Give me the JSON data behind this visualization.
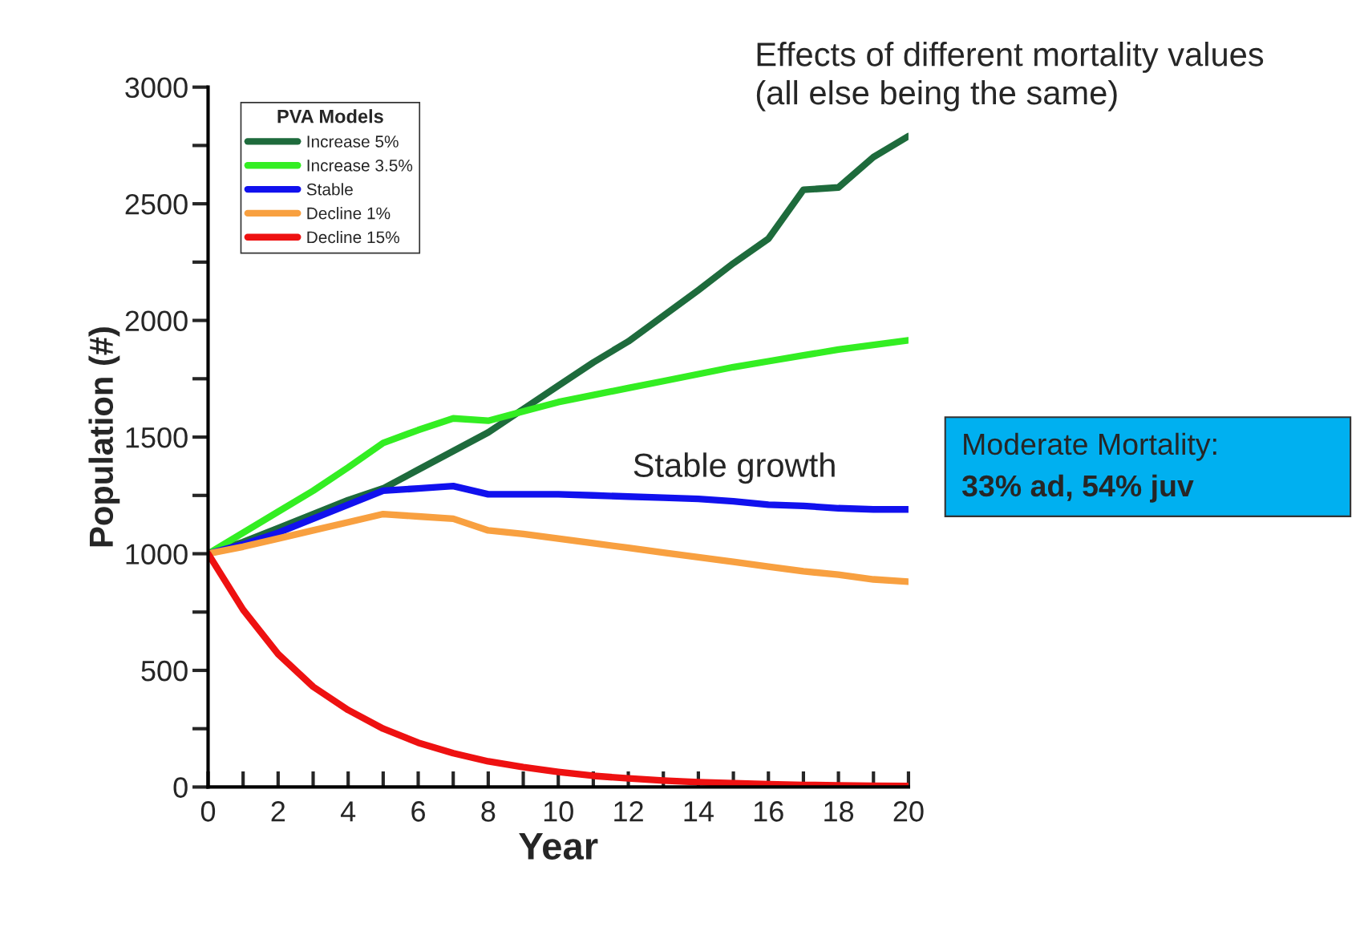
{
  "chart_data": {
    "type": "line",
    "xlabel": "Year",
    "ylabel": "Population (#)",
    "legend_title": "PVA Models",
    "legend": "top left",
    "grid": false,
    "line_style": "solid",
    "marker": "none",
    "x": [
      0,
      1,
      2,
      3,
      4,
      5,
      6,
      7,
      8,
      9,
      10,
      11,
      12,
      13,
      14,
      15,
      16,
      17,
      18,
      19,
      20
    ],
    "xlim": [
      0,
      20
    ],
    "xticks": [
      0,
      2,
      4,
      6,
      8,
      10,
      12,
      14,
      16,
      18,
      20
    ],
    "ylim": [
      0,
      3000
    ],
    "yticks": [
      0,
      500,
      1000,
      1500,
      2000,
      2500,
      3000
    ],
    "series": [
      {
        "name": "Increase 5%",
        "color": "#1e6b3c",
        "values": [
          1000,
          1050,
          1110,
          1170,
          1230,
          1280,
          1360,
          1440,
          1520,
          1620,
          1720,
          1820,
          1910,
          2020,
          2130,
          2245,
          2350,
          2560,
          2570,
          2700,
          2790
        ]
      },
      {
        "name": "Increase 3.5%",
        "color": "#33ee22",
        "values": [
          1000,
          1090,
          1180,
          1270,
          1370,
          1475,
          1530,
          1580,
          1570,
          1610,
          1650,
          1680,
          1710,
          1740,
          1770,
          1800,
          1825,
          1850,
          1875,
          1895,
          1915
        ]
      },
      {
        "name": "Stable",
        "color": "#1111ee",
        "values": [
          1000,
          1040,
          1090,
          1150,
          1210,
          1270,
          1280,
          1290,
          1255,
          1255,
          1255,
          1250,
          1245,
          1240,
          1235,
          1225,
          1210,
          1205,
          1195,
          1190,
          1190
        ]
      },
      {
        "name": "Decline 1%",
        "color": "#f8a040",
        "values": [
          1000,
          1030,
          1065,
          1100,
          1135,
          1170,
          1160,
          1150,
          1100,
          1085,
          1065,
          1045,
          1025,
          1005,
          985,
          965,
          945,
          925,
          910,
          890,
          880
        ]
      },
      {
        "name": "Decline 15%",
        "color": "#ee1111",
        "values": [
          1000,
          760,
          570,
          430,
          330,
          250,
          190,
          145,
          110,
          85,
          65,
          48,
          37,
          28,
          21,
          16,
          12,
          9,
          7,
          5,
          4
        ]
      }
    ],
    "annotations": [
      "Effects of different mortality values\n(all else being the same)",
      "Stable growth",
      "Moderate Mortality:",
      "33% ad, 54% juv"
    ]
  }
}
